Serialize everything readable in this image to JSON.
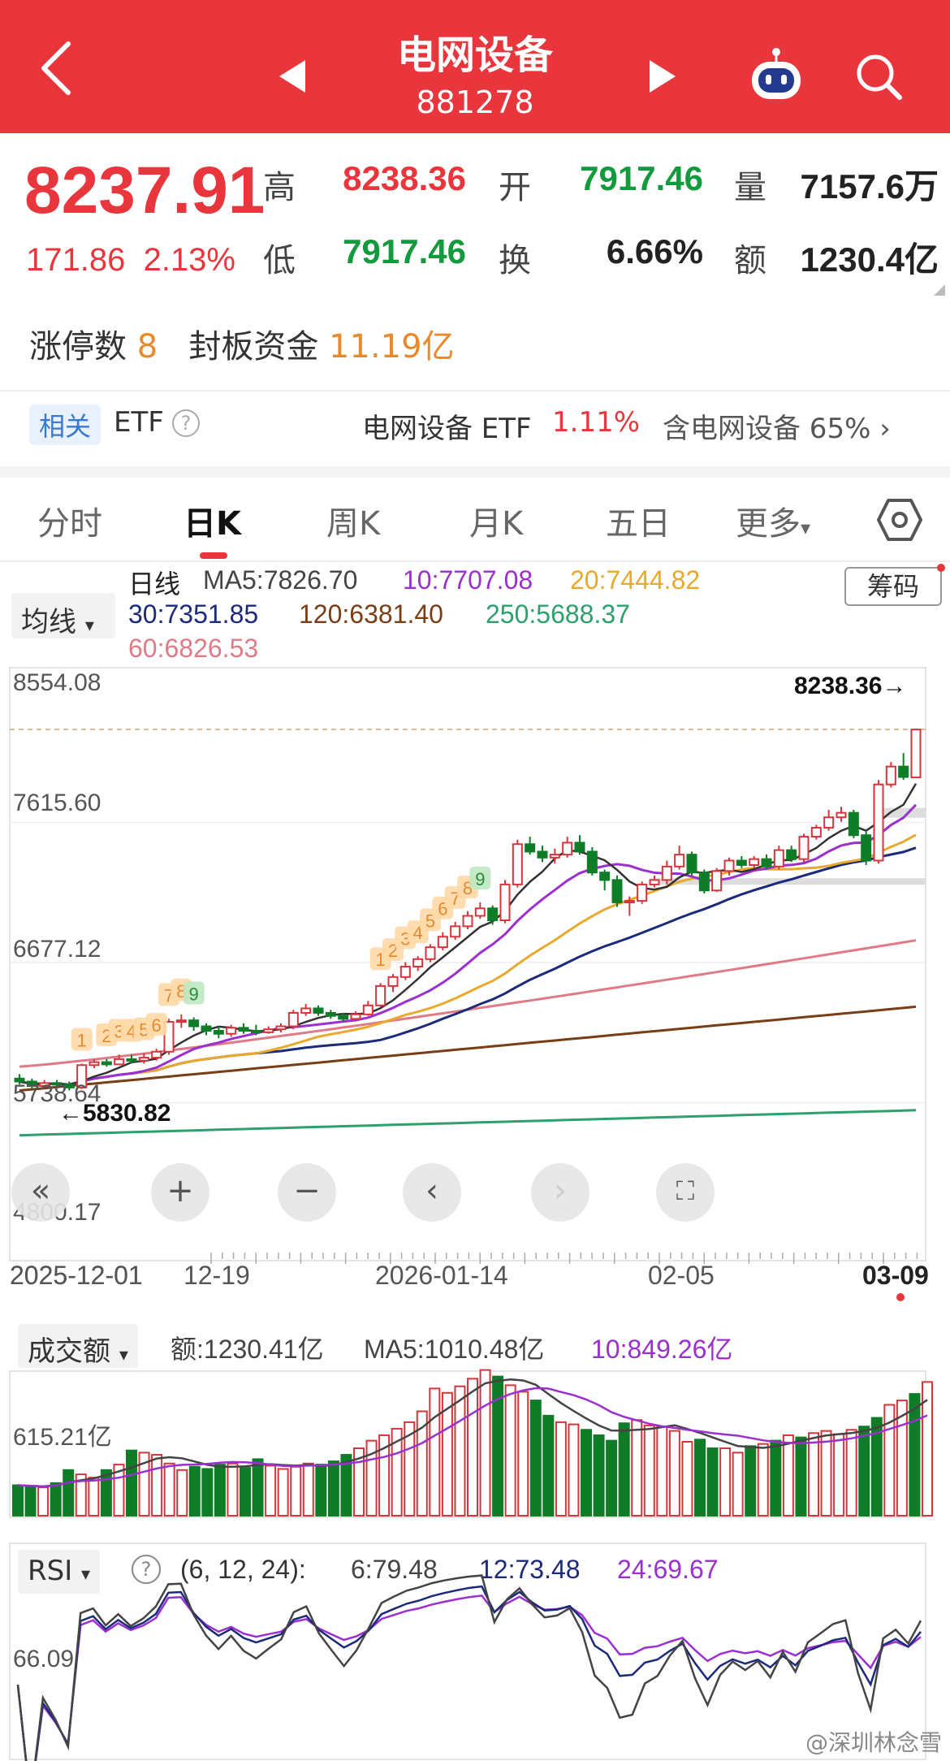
{
  "header": {
    "title": "电网设备",
    "code": "881278"
  },
  "quote": {
    "price": "8237.91",
    "change": "171.86",
    "change_pct": "2.13%",
    "high_label": "高",
    "high": "8238.36",
    "open_label": "开",
    "open": "7917.46",
    "volume_label": "量",
    "volume": "7157.6万",
    "low_label": "低",
    "low": "7917.46",
    "turnover_label": "换",
    "turnover": "6.66%",
    "amount_label": "额",
    "amount": "1230.4亿",
    "limit_label": "涨停数",
    "limit_count": "8",
    "seal_label": "封板资金",
    "seal_funds": "11.19亿"
  },
  "etf": {
    "tag": "相关",
    "label": "ETF",
    "help": "?",
    "fund_name": "电网设备 ETF",
    "fund_change": "1.11%",
    "holding": "含电网设备 65%",
    "chevron": "›"
  },
  "tabs": [
    {
      "label": "分时"
    },
    {
      "label": "日K"
    },
    {
      "label": "周K"
    },
    {
      "label": "月K"
    },
    {
      "label": "五日"
    },
    {
      "label": "更多"
    }
  ],
  "more_arrow": "▾",
  "ma": {
    "selector": "均线",
    "selector_arrow": "▾",
    "line_label": "日线",
    "ma5": "MA5:7826.70",
    "ma10": "10:7707.08",
    "ma20": "20:7444.82",
    "ma30": "30:7351.85",
    "ma120": "120:6381.40",
    "ma250": "250:5688.37",
    "ma60": "60:6826.53",
    "chips_button": "筹码"
  },
  "colors": {
    "up": "#d8343b",
    "down": "#0f7d28",
    "ma5": "#333333",
    "ma10": "#9b2fd0",
    "ma20": "#e8a92c",
    "ma30": "#1c2a7a",
    "ma60": "#e07a86",
    "ma120": "#7a3e16",
    "ma250": "#2ea06b"
  },
  "chart_data": [
    {
      "type": "candlestick",
      "y_ticks": [
        "8554.08",
        "7615.60",
        "6677.12",
        "5738.64",
        "4800.17"
      ],
      "ylim": [
        4800.17,
        8554.08
      ],
      "high_marker": "8238.36→",
      "low_marker": "←5830.82",
      "x_labels": [
        "2025-12-01",
        "12-19",
        "2026-01-14",
        "02-05",
        "03-09"
      ],
      "limit_up_badges": [
        "1",
        "2",
        "3",
        "4",
        "5",
        "6",
        "7",
        "8",
        "9",
        "1",
        "2",
        "3",
        "4",
        "5",
        "6",
        "7",
        "8",
        "9"
      ],
      "candles": [
        [
          5900,
          5880,
          5930,
          5860
        ],
        [
          5880,
          5850,
          5900,
          5830
        ],
        [
          5850,
          5870,
          5890,
          5840
        ],
        [
          5870,
          5860,
          5890,
          5840
        ],
        [
          5860,
          5840,
          5880,
          5820
        ],
        [
          5840,
          5990,
          6000,
          5830
        ],
        [
          5990,
          6010,
          6030,
          5970
        ],
        [
          6010,
          5995,
          6030,
          5980
        ],
        [
          5995,
          6030,
          6060,
          5990
        ],
        [
          6030,
          6020,
          6060,
          6000
        ],
        [
          6020,
          6040,
          6070,
          6000
        ],
        [
          6040,
          6080,
          6100,
          6020
        ],
        [
          6080,
          6280,
          6300,
          6060
        ],
        [
          6280,
          6290,
          6330,
          6240
        ],
        [
          6290,
          6250,
          6310,
          6220
        ],
        [
          6250,
          6220,
          6270,
          6190
        ],
        [
          6220,
          6200,
          6250,
          6170
        ],
        [
          6200,
          6240,
          6260,
          6180
        ],
        [
          6240,
          6220,
          6270,
          6200
        ],
        [
          6220,
          6210,
          6260,
          6190
        ],
        [
          6210,
          6230,
          6250,
          6200
        ],
        [
          6230,
          6250,
          6270,
          6210
        ],
        [
          6250,
          6340,
          6360,
          6230
        ],
        [
          6340,
          6370,
          6400,
          6320
        ],
        [
          6370,
          6340,
          6390,
          6320
        ],
        [
          6340,
          6320,
          6360,
          6300
        ],
        [
          6320,
          6300,
          6340,
          6280
        ],
        [
          6300,
          6330,
          6350,
          6290
        ],
        [
          6330,
          6390,
          6420,
          6320
        ],
        [
          6390,
          6520,
          6540,
          6380
        ],
        [
          6520,
          6580,
          6600,
          6480
        ],
        [
          6580,
          6650,
          6680,
          6560
        ],
        [
          6650,
          6700,
          6720,
          6620
        ],
        [
          6700,
          6780,
          6800,
          6680
        ],
        [
          6780,
          6850,
          6880,
          6760
        ],
        [
          6850,
          6920,
          6950,
          6830
        ],
        [
          6920,
          6990,
          7020,
          6900
        ],
        [
          6990,
          7040,
          7080,
          6970
        ],
        [
          7040,
          6960,
          7060,
          6930
        ],
        [
          6960,
          7200,
          7230,
          6940
        ],
        [
          7200,
          7470,
          7500,
          7180
        ],
        [
          7470,
          7420,
          7520,
          7400
        ],
        [
          7420,
          7380,
          7460,
          7350
        ],
        [
          7380,
          7400,
          7440,
          7340
        ],
        [
          7400,
          7480,
          7520,
          7380
        ],
        [
          7480,
          7420,
          7530,
          7400
        ],
        [
          7420,
          7280,
          7450,
          7260
        ],
        [
          7280,
          7230,
          7300,
          7160
        ],
        [
          7230,
          7080,
          7260,
          7050
        ],
        [
          7080,
          7090,
          7120,
          6990
        ],
        [
          7090,
          7200,
          7220,
          7070
        ],
        [
          7200,
          7230,
          7260,
          7180
        ],
        [
          7230,
          7320,
          7360,
          7200
        ],
        [
          7320,
          7400,
          7460,
          7300
        ],
        [
          7400,
          7280,
          7420,
          7260
        ],
        [
          7280,
          7160,
          7300,
          7140
        ],
        [
          7160,
          7290,
          7310,
          7150
        ],
        [
          7290,
          7360,
          7380,
          7260
        ],
        [
          7360,
          7330,
          7390,
          7310
        ],
        [
          7330,
          7370,
          7390,
          7310
        ],
        [
          7370,
          7320,
          7400,
          7300
        ],
        [
          7320,
          7430,
          7460,
          7300
        ],
        [
          7430,
          7370,
          7460,
          7350
        ],
        [
          7370,
          7520,
          7540,
          7350
        ],
        [
          7520,
          7580,
          7600,
          7500
        ],
        [
          7580,
          7650,
          7700,
          7560
        ],
        [
          7650,
          7680,
          7720,
          7620
        ],
        [
          7680,
          7530,
          7700,
          7510
        ],
        [
          7530,
          7360,
          7560,
          7330
        ],
        [
          7360,
          7870,
          7900,
          7340
        ],
        [
          7870,
          7990,
          8020,
          7850
        ],
        [
          7990,
          7920,
          8080,
          7900
        ],
        [
          7917,
          8238,
          8238,
          7917
        ]
      ],
      "volume": {
        "label": "成交额",
        "amount": "额:1230.41亿",
        "ma5": "MA5:1010.48亿",
        "ma10": "10:849.26亿",
        "y_tick": "615.21亿",
        "values": [
          280,
          270,
          260,
          300,
          420,
          380,
          350,
          420,
          470,
          600,
          580,
          560,
          480,
          420,
          450,
          430,
          470,
          480,
          440,
          520,
          460,
          430,
          450,
          480,
          470,
          500,
          560,
          620,
          690,
          740,
          800,
          860,
          960,
          1170,
          1130,
          1190,
          1260,
          1340,
          1280,
          1200,
          1140,
          1060,
          920,
          860,
          840,
          790,
          740,
          690,
          850,
          880,
          830,
          820,
          780,
          680,
          700,
          620,
          620,
          580,
          640,
          660,
          690,
          740,
          720,
          760,
          780,
          750,
          790,
          820,
          900,
          1020,
          1060,
          1120,
          1230
        ]
      },
      "rsi": {
        "label": "RSI",
        "help": "?",
        "params": "(6, 12, 24):",
        "rsi6": "6:79.48",
        "rsi12": "12:73.48",
        "rsi24": "24:69.67",
        "y_tick": "66.09"
      }
    }
  ],
  "controls": [
    "«",
    "+",
    "−",
    "‹",
    "›",
    "⛶"
  ],
  "watermark": "@深圳林念雪"
}
